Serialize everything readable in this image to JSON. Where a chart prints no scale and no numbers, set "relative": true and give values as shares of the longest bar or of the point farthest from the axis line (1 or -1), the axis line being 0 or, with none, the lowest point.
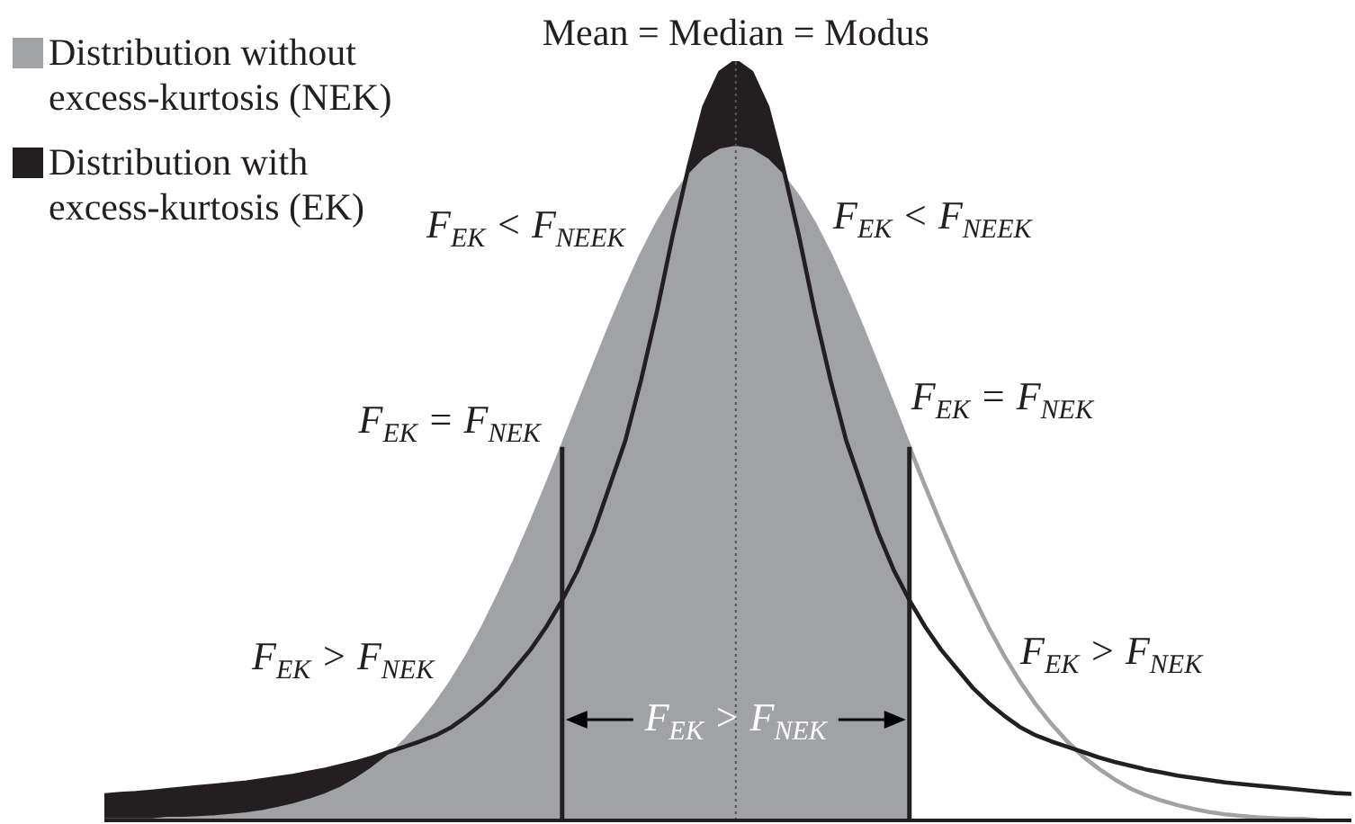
{
  "chart_data": {
    "type": "area",
    "relative": true,
    "categories": [
      null,
      null,
      null,
      null,
      null,
      null,
      null,
      null,
      null,
      null,
      null,
      null,
      null,
      null,
      null,
      null,
      null,
      null,
      null,
      null,
      null,
      null,
      null,
      null,
      null,
      null,
      null,
      null,
      null,
      null,
      null,
      null,
      null,
      null,
      null,
      null,
      null,
      null,
      null,
      null,
      null,
      null,
      null,
      null,
      null,
      null,
      null,
      null,
      null,
      null,
      null,
      null,
      null,
      null,
      null,
      null,
      null,
      null,
      null,
      null,
      null,
      null,
      null,
      null,
      null,
      null,
      null,
      null,
      null,
      null,
      null,
      null,
      null,
      null,
      null,
      null,
      null,
      null,
      null,
      null
    ],
    "series": [
      {
        "name": "Distribution without excess-kurtosis (NEK)",
        "color": "#a1a2a6",
        "values": [
          0,
          0,
          0,
          0,
          0.002,
          0.002,
          0.003,
          0.004,
          0.006,
          0.008,
          0.011,
          0.015,
          0.02,
          0.026,
          0.033,
          0.042,
          0.054,
          0.068,
          0.084,
          0.104,
          0.127,
          0.153,
          0.183,
          0.217,
          0.255,
          0.297,
          0.342,
          0.39,
          0.44,
          0.492,
          0.545,
          0.597,
          0.649,
          0.698,
          0.744,
          0.785,
          0.82,
          0.848,
          0.869,
          0.882,
          0.886,
          0.882,
          0.869,
          0.848,
          0.82,
          0.785,
          0.744,
          0.698,
          0.649,
          0.597,
          0.545,
          0.492,
          null,
          null,
          null,
          null,
          null,
          null,
          null,
          null,
          null,
          null,
          null,
          null,
          null,
          null,
          null,
          null,
          null,
          null,
          null,
          null,
          null,
          null,
          null,
          null,
          null,
          null,
          null,
          null
        ]
      },
      {
        "name": "Distribution with excess-kurtosis (EK)",
        "color": "#231f20",
        "values": [
          0.033,
          0.035,
          0.036,
          0.038,
          0.04,
          0.042,
          0.044,
          0.046,
          0.048,
          0.05,
          0.053,
          0.056,
          0.059,
          0.063,
          0.067,
          0.072,
          0.077,
          0.083,
          0.09,
          0.097,
          0.104,
          0.112,
          0.123,
          0.138,
          0.155,
          0.175,
          0.2,
          0.225,
          0.255,
          0.29,
          0.33,
          0.38,
          0.44,
          0.5,
          0.58,
          0.67,
          0.77,
          0.86,
          0.94,
          0.985,
          1,
          0.985,
          0.94,
          0.86,
          0.77,
          0.67,
          0.58,
          0.5,
          0.44,
          0.38,
          0.33,
          0.29,
          null,
          null,
          null,
          null,
          null,
          null,
          null,
          null,
          null,
          null,
          null,
          null,
          null,
          null,
          null,
          null,
          null,
          null,
          null,
          null,
          null,
          null,
          null,
          null,
          null,
          null,
          null,
          null
        ]
      },
      {
        "type": "line",
        "color": "#a1a2a6",
        "values": [
          null,
          null,
          null,
          null,
          null,
          null,
          null,
          null,
          null,
          null,
          null,
          null,
          null,
          null,
          null,
          null,
          null,
          null,
          null,
          null,
          null,
          null,
          null,
          null,
          null,
          null,
          null,
          null,
          null,
          null,
          null,
          null,
          null,
          null,
          null,
          null,
          null,
          null,
          null,
          null,
          null,
          null,
          null,
          null,
          null,
          null,
          null,
          null,
          null,
          null,
          null,
          0.492,
          0.44,
          0.39,
          0.342,
          0.297,
          0.255,
          0.217,
          0.183,
          0.153,
          0.127,
          0.104,
          0.084,
          0.068,
          0.054,
          0.042,
          0.033,
          0.026,
          0.02,
          0.015,
          0.011,
          0.008,
          0.006,
          0.004,
          0.003,
          0.002,
          0.002,
          0,
          0,
          0
        ]
      },
      {
        "type": "line",
        "color": "#231f20",
        "values": [
          null,
          null,
          null,
          null,
          null,
          null,
          null,
          null,
          null,
          null,
          null,
          null,
          null,
          null,
          null,
          null,
          null,
          null,
          null,
          null,
          null,
          null,
          null,
          null,
          null,
          null,
          null,
          null,
          null,
          null,
          null,
          null,
          null,
          null,
          null,
          null,
          null,
          null,
          null,
          null,
          null,
          null,
          null,
          null,
          null,
          null,
          null,
          null,
          null,
          null,
          null,
          0.29,
          0.255,
          0.225,
          0.2,
          0.175,
          0.155,
          0.138,
          0.123,
          0.112,
          0.104,
          0.097,
          0.09,
          0.083,
          0.077,
          0.072,
          0.067,
          0.063,
          0.059,
          0.056,
          0.053,
          0.05,
          0.048,
          0.046,
          0.044,
          0.042,
          0.04,
          0.038,
          0.036,
          0.035
        ]
      }
    ],
    "legend": "top left",
    "annotations": [
      "Mean = Median = Modus",
      "F$_{EK}$ < F$_{NEEK}$",
      "F$_{EK}$ < F$_{NEEK}$",
      "F$_{EK}$ = F$_{NEK}$",
      "F$_{EK}$ = F$_{NEK}$",
      "F$_{EK}$ > F$_{NEK}$",
      "F$_{EK}$ > F$_{NEK}$",
      "F$_{EK}$ > F$_{NEK}$"
    ]
  }
}
